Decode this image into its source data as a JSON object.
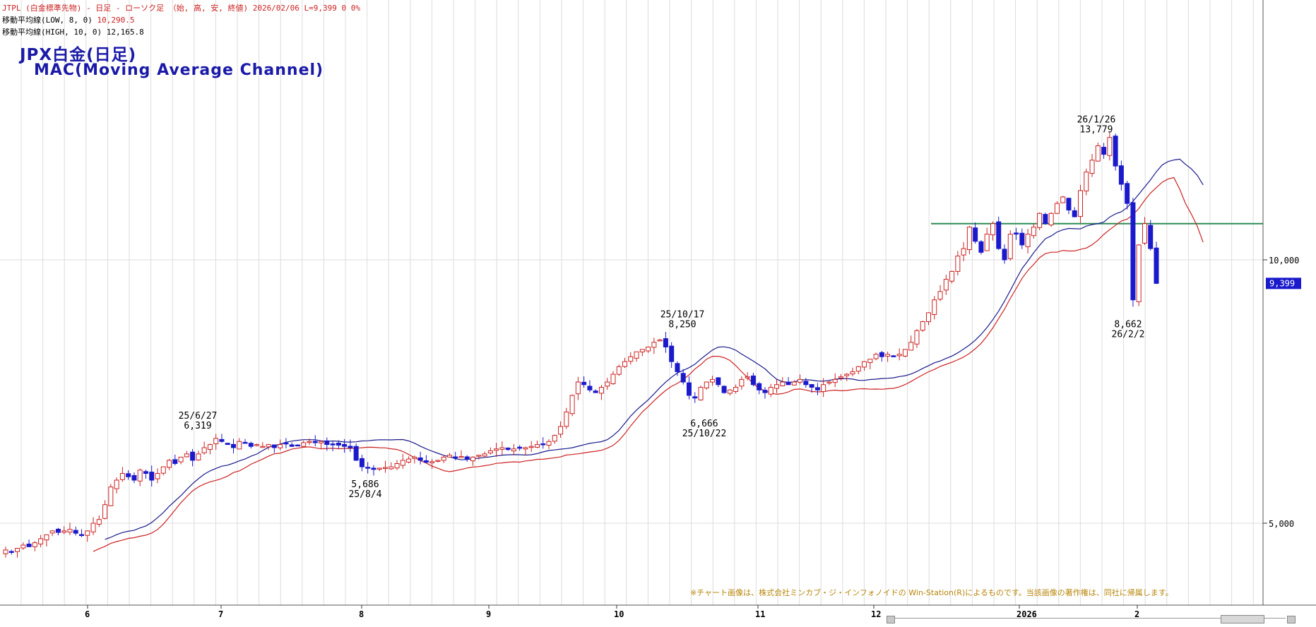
{
  "header": {
    "line1": "JTPL (白金標準先物) - 日足 - ローソク足 （始, 高, 安, 終値)  2026/02/06  L=9,399  0   0%",
    "ma_low_label": "移動平均線(LOW, 8, 0)",
    "ma_low_value": "10,290.5",
    "ma_high_label": "移動平均線(HIGH, 10, 0)",
    "ma_high_value": "12,165.8"
  },
  "title": {
    "line1": "JPX白金(日足)",
    "line2": "MAC(Moving Average Channel)"
  },
  "copyright": "※チャート画像は、株式会社ミンカブ・ジ・インフォノイドの Win-Station(R)によるものです。当該画像の著作権は、同社に帰属します。",
  "current_price_tag": "9,399",
  "colors": {
    "bull": "#cc2222",
    "bear": "#1a1acc",
    "ma_high": "#1a1a8c",
    "ma_low": "#cc2222",
    "hline": "#2e8b57",
    "title": "#1a1aa8",
    "price_tag_bg": "#1a1acc"
  },
  "chart_data": {
    "type": "candlestick",
    "scale": "log",
    "ylim": [
      4000,
      15500
    ],
    "y_ticks": [
      {
        "value": 5000,
        "label": "5,000"
      },
      {
        "value": 10000,
        "label": "10,000"
      }
    ],
    "x_month_labels": [
      "6",
      "7",
      "8",
      "9",
      "10",
      "11",
      "12",
      "2026",
      "2"
    ],
    "horizontal_line": 11000,
    "annotations": [
      {
        "date": "25/6/27",
        "value": 6319,
        "label_date": "25/6/27",
        "label_value": "6,319",
        "pos": "above"
      },
      {
        "date": "25/8/4",
        "value": 5686,
        "label_date": "25/8/4",
        "label_value": "5,686",
        "pos": "below"
      },
      {
        "date": "25/10/17",
        "value": 8250,
        "label_date": "25/10/17",
        "label_value": "8,250",
        "pos": "above"
      },
      {
        "date": "25/10/22",
        "value": 6666,
        "label_date": "25/10/22",
        "label_value": "6,666",
        "pos": "below"
      },
      {
        "date": "26/1/26",
        "value": 13779,
        "label_date": "26/1/26",
        "label_value": "13,779",
        "pos": "above"
      },
      {
        "date": "26/2/2",
        "value": 8662,
        "label_date": "26/2/2",
        "label_value": "8,662",
        "pos": "below"
      }
    ],
    "closes_approx": [
      4660,
      4640,
      4680,
      4720,
      4700,
      4750,
      4800,
      4850,
      4900,
      4880,
      4900,
      4920,
      4870,
      4850,
      4900,
      5000,
      5050,
      5250,
      5500,
      5600,
      5700,
      5650,
      5600,
      5750,
      5700,
      5600,
      5700,
      5800,
      5900,
      5850,
      5950,
      6000,
      5900,
      6000,
      6100,
      6150,
      6250,
      6200,
      6150,
      6100,
      6200,
      6180,
      6120,
      6150,
      6120,
      6150,
      6100,
      6150,
      6160,
      6120,
      6140,
      6180,
      6200,
      6180,
      6200,
      6150,
      6150,
      6140,
      6120,
      6100,
      5900,
      5800,
      5780,
      5760,
      5780,
      5790,
      5800,
      5850,
      5900,
      5920,
      5950,
      5900,
      5870,
      5880,
      5900,
      5950,
      5980,
      5950,
      5960,
      5920,
      5950,
      5980,
      6000,
      6050,
      6080,
      6100,
      6070,
      6080,
      6090,
      6100,
      6120,
      6150,
      6150,
      6200,
      6300,
      6450,
      6700,
      7000,
      7250,
      7200,
      7100,
      7050,
      7150,
      7250,
      7400,
      7550,
      7650,
      7750,
      7850,
      7900,
      7950,
      8050,
      8100,
      7950,
      7650,
      7450,
      7250,
      7000,
      6950,
      7150,
      7250,
      7300,
      7200,
      7050,
      7100,
      7150,
      7300,
      7350,
      7200,
      7100,
      7050,
      7150,
      7200,
      7250,
      7200,
      7250,
      7300,
      7200,
      7150,
      7100,
      7200,
      7250,
      7300,
      7350,
      7400,
      7450,
      7550,
      7650,
      7700,
      7800,
      7750,
      7800,
      7750,
      7800,
      7900,
      8050,
      8300,
      8500,
      8700,
      9000,
      9200,
      9500,
      9700,
      10100,
      10300,
      10900,
      10500,
      10200,
      10700,
      11000,
      10300,
      10000,
      10700,
      10700,
      10400,
      10700,
      10900,
      11300,
      11000,
      11300,
      11600,
      11800,
      11400,
      11200,
      12000,
      12600,
      13000,
      13500,
      13200,
      13800,
      12800,
      12200,
      11600,
      9000,
      10400,
      11000,
      10300,
      9399
    ]
  }
}
